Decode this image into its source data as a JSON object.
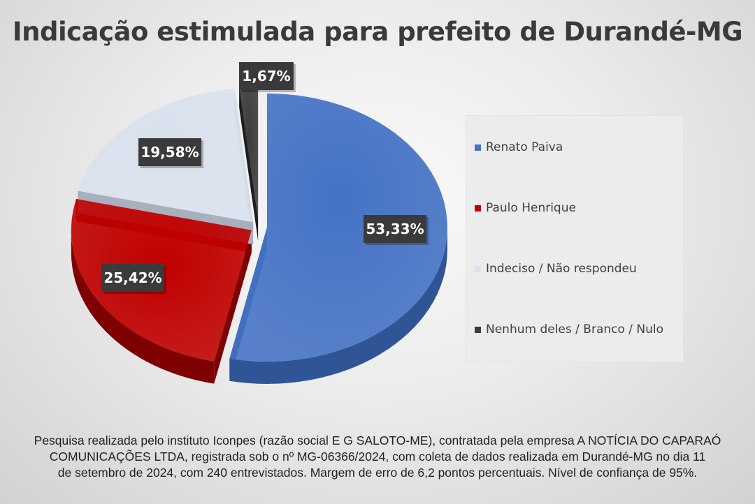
{
  "chart_data": {
    "type": "pie",
    "title": "Indicação estimulada para prefeito de Durandé-MG",
    "slices": [
      {
        "label": "Renato Paiva",
        "value": 53.33,
        "display": "53,33%",
        "color": "#4472c4"
      },
      {
        "label": "Paulo Henrique",
        "value": 25.42,
        "display": "25,42%",
        "color": "#c00000"
      },
      {
        "label": "Indeciso / Não respondeu",
        "value": 19.58,
        "display": "19,58%",
        "color": "#dae1ee"
      },
      {
        "label": "Nenhum deles / Branco / Nulo",
        "value": 1.67,
        "display": "1,67%",
        "color": "#3c3c3c"
      }
    ],
    "legend_position": "right"
  },
  "footer": {
    "line1": "Pesquisa realizada pelo instituto Iconpes (razão social E G SALOTO-ME), contratada pela empresa A NOTÍCIA DO CAPARAÓ",
    "line2": "COMUNICAÇÕES LTDA, registrada sob o nº MG-06366/2024, com coleta de dados realizada em Durandé-MG no dia 11",
    "line3": "de setembro de 2024, com 240 entrevistados. Margem de erro de 6,2 pontos percentuais. Nível de confiança de 95%."
  }
}
